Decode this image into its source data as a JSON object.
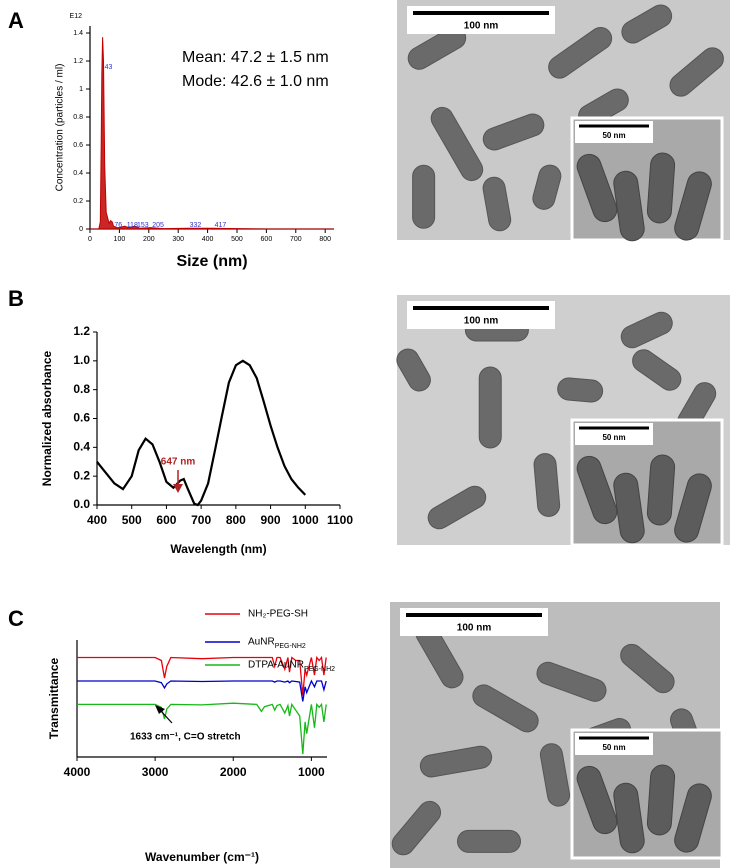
{
  "panel_labels": [
    "A",
    "B",
    "C"
  ],
  "images": [
    {
      "scale_bar": "100 nm",
      "inset_scale_bar": "50 nm"
    },
    {
      "scale_bar": "100 nm",
      "inset_scale_bar": "50 nm"
    },
    {
      "scale_bar": "100 nm",
      "inset_scale_bar": "50 nm"
    }
  ],
  "chart_data": [
    {
      "type": "area",
      "xlabel": "Size (nm)",
      "ylabel": "Concentration (particles / ml)",
      "y_multiplier": "E12",
      "annotations": [
        "Mean: 47.2 ± 1.5 nm",
        "Mode: 42.6 ± 1.0 nm"
      ],
      "x": [
        0,
        30,
        35,
        38,
        40,
        43,
        46,
        50,
        55,
        60,
        65,
        70,
        76,
        80,
        90,
        100,
        118,
        130,
        153,
        170,
        205,
        250,
        332,
        417,
        600,
        830
      ],
      "series": [
        {
          "color": "#c00000",
          "values": [
            0,
            0,
            0.05,
            0.6,
            1.1,
            1.37,
            1.2,
            0.45,
            0.12,
            0.08,
            0.04,
            0.06,
            0.05,
            0.02,
            0.01,
            0.01,
            0.02,
            0.01,
            0.02,
            0.005,
            0.01,
            0.003,
            0.005,
            0.005,
            0,
            0
          ]
        }
      ],
      "peak_labels": [
        43,
        76,
        118,
        153,
        205,
        332,
        417
      ],
      "xlim": [
        0,
        830
      ],
      "ylim": [
        0,
        1.45
      ],
      "xticks": [
        0,
        100,
        200,
        300,
        400,
        500,
        600,
        700,
        800
      ],
      "yticks": [
        0,
        0.2,
        0.4,
        0.6,
        0.8,
        1,
        1.2,
        1.4
      ]
    },
    {
      "type": "line",
      "xlabel": "Wavelength (nm)",
      "ylabel": "Normalized absorbance",
      "annotations": [
        "647 nm"
      ],
      "x": [
        400,
        420,
        450,
        475,
        500,
        520,
        540,
        560,
        580,
        600,
        620,
        640,
        650,
        660,
        680,
        690,
        700,
        720,
        740,
        760,
        780,
        800,
        820,
        840,
        860,
        880,
        900,
        920,
        940,
        960,
        980,
        1000
      ],
      "series": [
        {
          "color": "#000000",
          "values": [
            0.3,
            0.24,
            0.15,
            0.11,
            0.2,
            0.38,
            0.46,
            0.42,
            0.3,
            0.16,
            0.12,
            0.17,
            0.18,
            0.12,
            0.01,
            0,
            0.03,
            0.15,
            0.38,
            0.62,
            0.85,
            0.97,
            1,
            0.97,
            0.88,
            0.72,
            0.55,
            0.4,
            0.27,
            0.18,
            0.12,
            0.07
          ]
        }
      ],
      "xlim": [
        400,
        1100
      ],
      "ylim": [
        0,
        1.2
      ],
      "xticks": [
        400,
        500,
        600,
        700,
        800,
        900,
        1000,
        1100
      ],
      "yticks": [
        {
          "value": 0,
          "label": "0.0"
        },
        0.2,
        0.4,
        0.6,
        0.8,
        {
          "value": 1,
          "label": "1.0"
        },
        1.2
      ]
    },
    {
      "type": "line",
      "xlabel": "Wavenumber (cm⁻¹)",
      "ylabel": "Transmittance",
      "annotations": [
        "1633 cm⁻¹, C=O stretch"
      ],
      "x": [
        4000,
        3500,
        3000,
        2920,
        2880,
        2850,
        2800,
        2400,
        2000,
        1700,
        1640,
        1600,
        1500,
        1470,
        1440,
        1400,
        1340,
        1300,
        1280,
        1250,
        1200,
        1150,
        1110,
        1080,
        1060,
        1000,
        960,
        930,
        900,
        870,
        840,
        810
      ],
      "series": [
        {
          "name": "NH₂-PEG-SH",
          "color": "#e8000b",
          "values": [
            2.6,
            2.6,
            2.6,
            2.55,
            2.25,
            2.45,
            2.6,
            2.58,
            2.6,
            2.6,
            2.6,
            2.6,
            2.6,
            2.45,
            2.6,
            2.6,
            2.4,
            2.6,
            2.35,
            2.6,
            2.55,
            2.55,
            1.95,
            2.4,
            2.3,
            2.6,
            2.3,
            2.6,
            2.55,
            2.6,
            2.3,
            2.6
          ]
        },
        {
          "name": "AuNR",
          "subscript": "PEG-NH2",
          "color": "#0000cc",
          "values": [
            2.2,
            2.2,
            2.2,
            2.17,
            2.08,
            2.15,
            2.2,
            2.19,
            2.2,
            2.2,
            2.2,
            2.2,
            2.2,
            2.18,
            2.2,
            2.2,
            2.18,
            2.2,
            2.17,
            2.2,
            2.19,
            2.18,
            1.85,
            2.1,
            2.0,
            2.2,
            2.1,
            2.2,
            2.2,
            2.2,
            2.05,
            2.2
          ]
        },
        {
          "name": "DTPA-AuNR",
          "subscript": "PEG-NH2",
          "color": "#18b818",
          "values": [
            1.8,
            1.8,
            1.8,
            1.75,
            1.55,
            1.72,
            1.8,
            1.79,
            1.82,
            1.8,
            1.68,
            1.76,
            1.8,
            1.7,
            1.78,
            1.8,
            1.65,
            1.78,
            1.6,
            1.8,
            1.7,
            1.6,
            0.95,
            1.5,
            1.3,
            1.8,
            1.4,
            1.8,
            1.75,
            1.8,
            1.5,
            1.8
          ]
        }
      ],
      "xlim": [
        4000,
        800
      ],
      "ylim": [
        0.9,
        2.9
      ],
      "xticks": [
        4000,
        3000,
        2000,
        1000
      ]
    }
  ]
}
